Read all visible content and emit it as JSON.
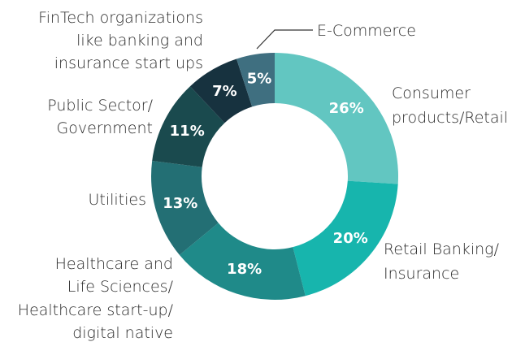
{
  "chart_data": {
    "type": "donut",
    "categories": [
      "Consumer\nproducts/Retail",
      "Retail Banking/\nInsurance",
      "Healthcare and\nLife Sciences/\nHealthcare start-up/\ndigital native",
      "Utilities",
      "Public Sector/\nGovernment",
      "FinTech organizations\nlike banking and\ninsurance start ups",
      "E-Commerce"
    ],
    "values": [
      26,
      20,
      18,
      13,
      11,
      7,
      5
    ],
    "value_labels": [
      "26%",
      "20%",
      "18%",
      "13%",
      "11%",
      "7%",
      "5%"
    ],
    "colors": [
      "#62c6c1",
      "#17b5ad",
      "#1f8a89",
      "#236f74",
      "#1a4a4e",
      "#17323f",
      "#3f6f80"
    ]
  }
}
